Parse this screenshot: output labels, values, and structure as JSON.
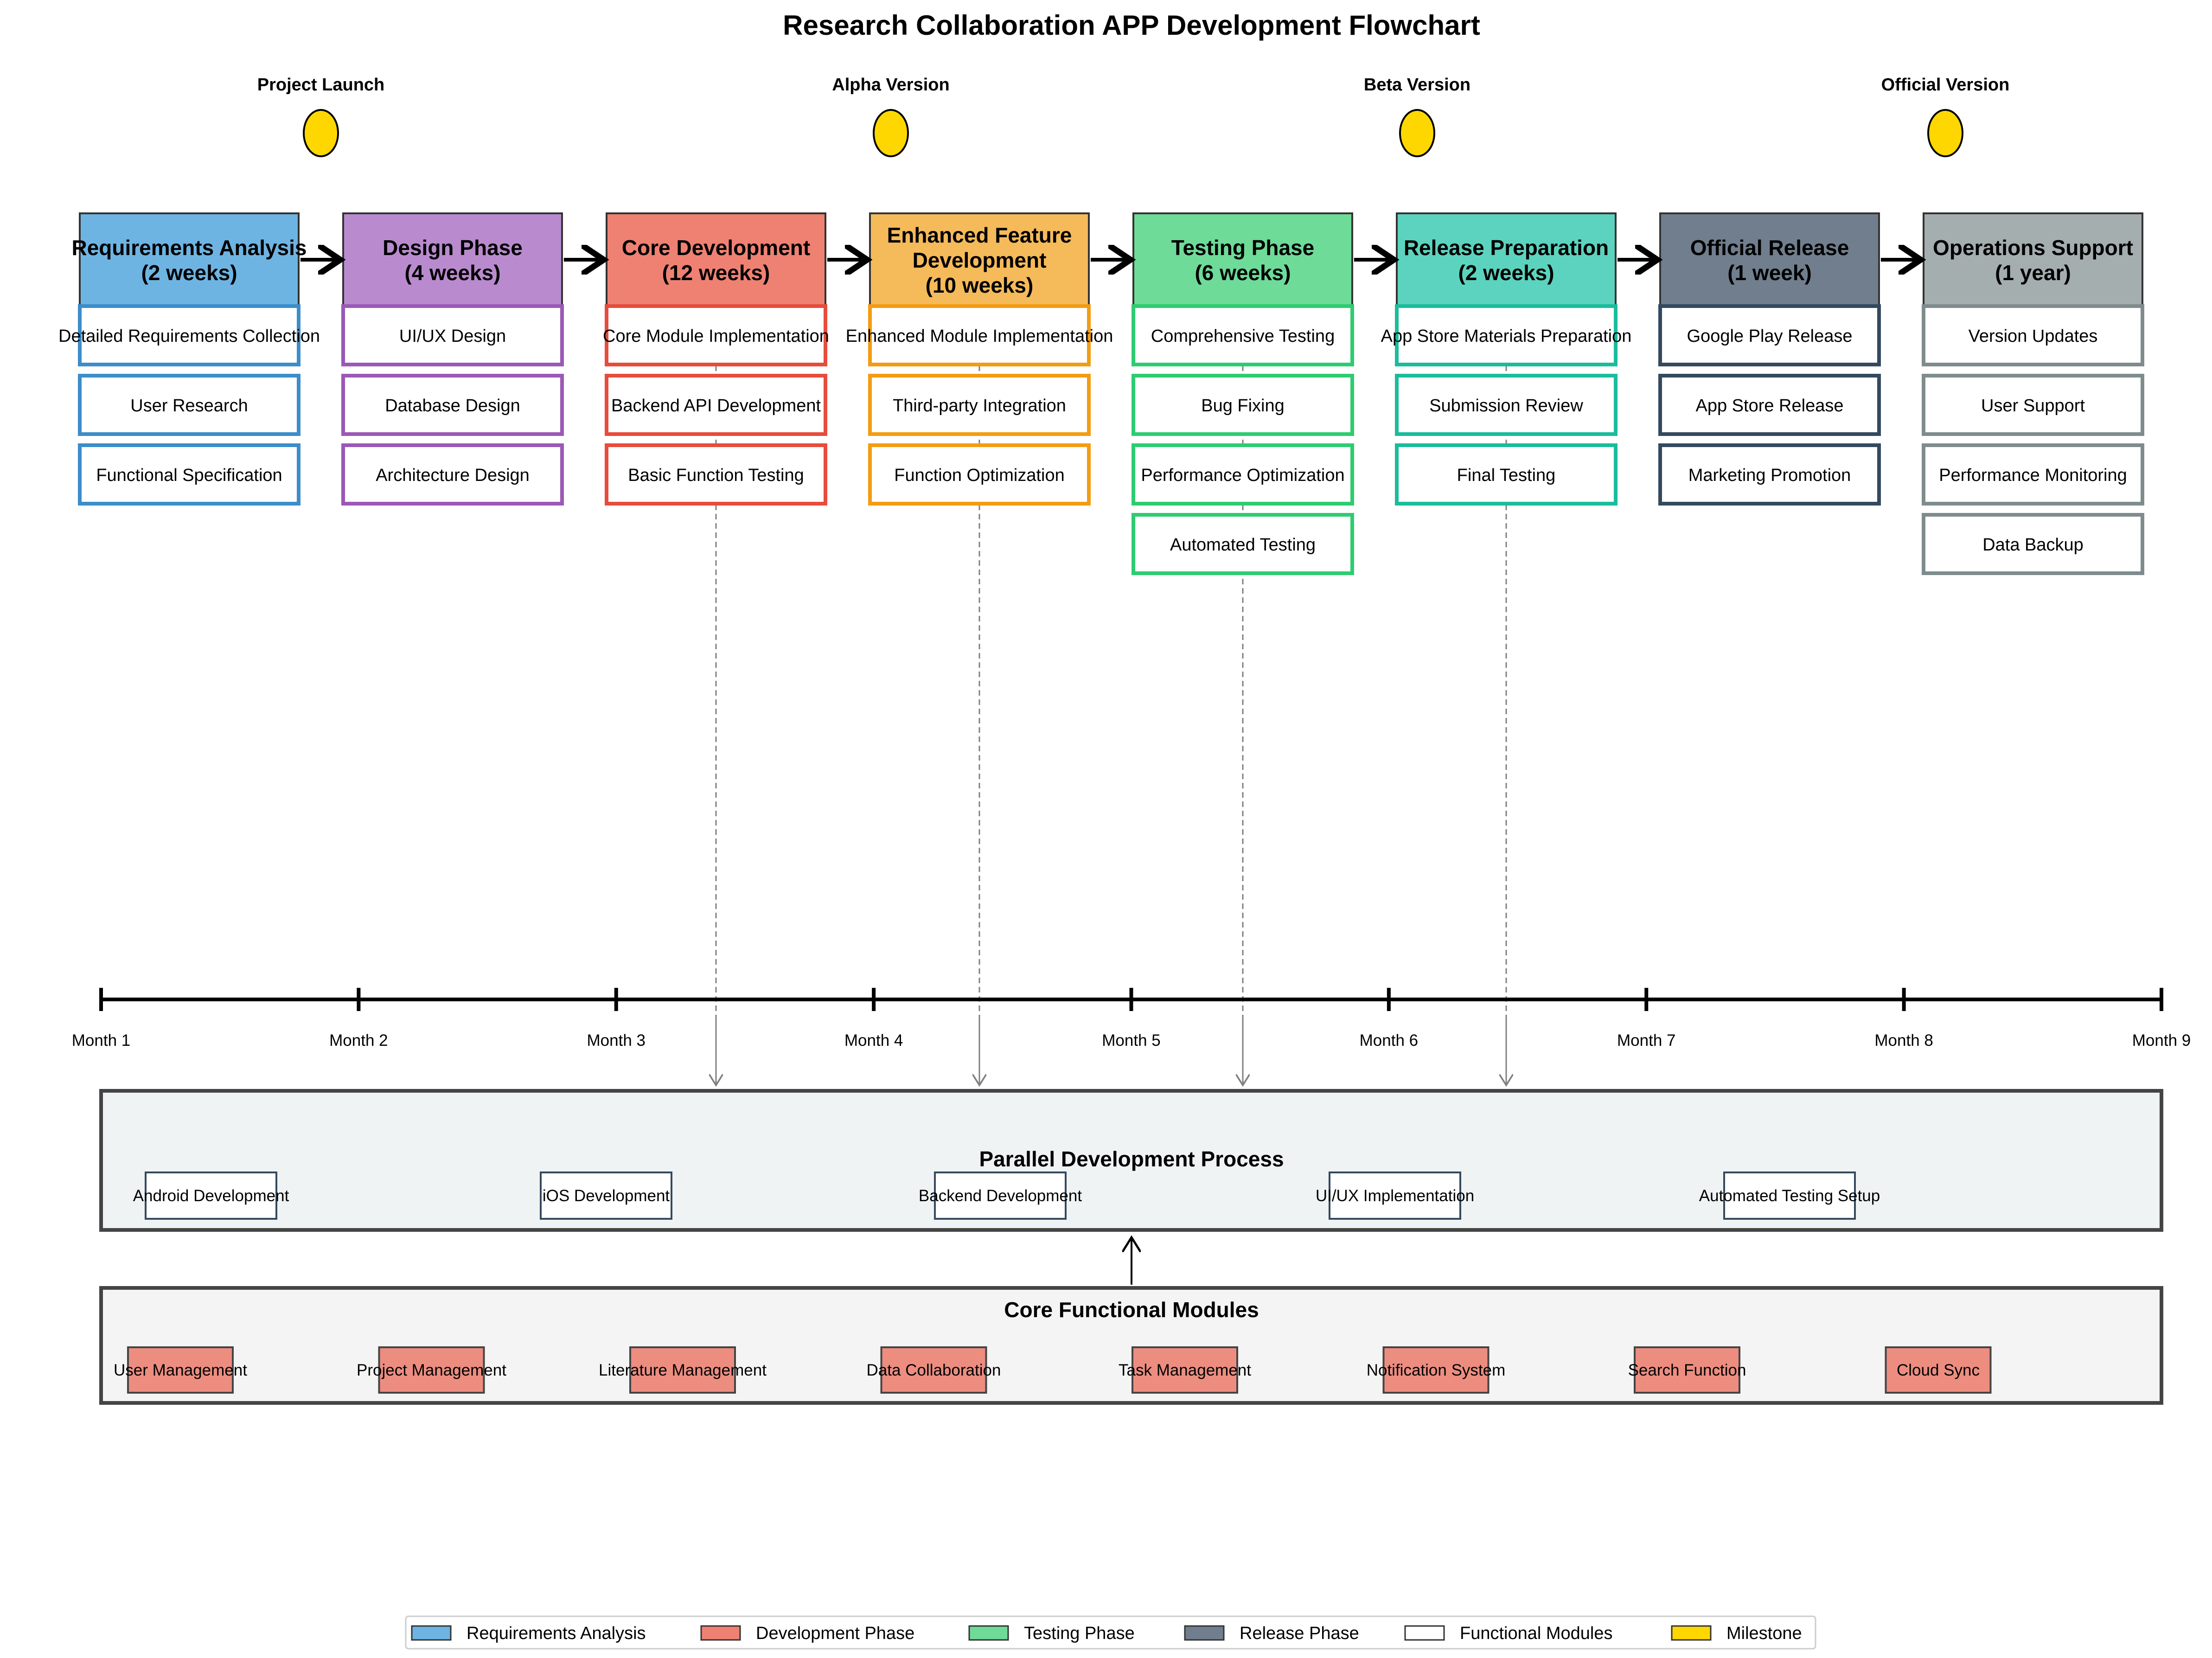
{
  "title": "Research Collaboration APP Development Flowchart",
  "milestones": [
    {
      "label": "Project Launch",
      "color": "#FFD700"
    },
    {
      "label": "Alpha Version",
      "color": "#FFD700"
    },
    {
      "label": "Beta Version",
      "color": "#FFD700"
    },
    {
      "label": "Official Version",
      "color": "#FFD700"
    }
  ],
  "phases": [
    {
      "title": [
        "Requirements Analysis",
        "(2 weeks)"
      ],
      "fill": "#6EB4E3",
      "border": "#3C8DC9",
      "tasks": [
        "Detailed Requirements Collection",
        "User Research",
        "Functional Specification"
      ]
    },
    {
      "title": [
        "Design Phase",
        "(4 weeks)"
      ],
      "fill": "#B98BCE",
      "border": "#9B59B6",
      "tasks": [
        "UI/UX Design",
        "Database Design",
        "Architecture Design"
      ]
    },
    {
      "title": [
        "Core Development",
        "(12 weeks)"
      ],
      "fill": "#EF8173",
      "border": "#E74C3C",
      "tasks": [
        "Core Module Implementation",
        "Backend API Development",
        "Basic Function Testing"
      ]
    },
    {
      "title": [
        "Enhanced Feature",
        "Development",
        "(10 weeks)"
      ],
      "fill": "#F5BA5A",
      "border": "#F39C12",
      "tasks": [
        "Enhanced Module Implementation",
        "Third-party Integration",
        "Function Optimization"
      ]
    },
    {
      "title": [
        "Testing Phase",
        "(6 weeks)"
      ],
      "fill": "#6EDB98",
      "border": "#2ECC71",
      "tasks": [
        "Comprehensive Testing",
        "Bug Fixing",
        "Performance Optimization",
        "Automated Testing"
      ]
    },
    {
      "title": [
        "Release Preparation",
        "(2 weeks)"
      ],
      "fill": "#5CD3BE",
      "border": "#1ABC9C",
      "tasks": [
        "App Store Materials Preparation",
        "Submission Review",
        "Final Testing"
      ]
    },
    {
      "title": [
        "Official Release",
        "(1 week)"
      ],
      "fill": "#707E8E",
      "border": "#34495E",
      "tasks": [
        "Google Play Release",
        "App Store Release",
        "Marketing Promotion"
      ]
    },
    {
      "title": [
        "Operations Support",
        "(1 year)"
      ],
      "fill": "#A5AEAF",
      "border": "#7F8C8D",
      "tasks": [
        "Version Updates",
        "User Support",
        "Performance Monitoring",
        "Data Backup"
      ]
    }
  ],
  "timeline": [
    "Month 1",
    "Month 2",
    "Month 3",
    "Month 4",
    "Month 5",
    "Month 6",
    "Month 7",
    "Month 8",
    "Month 9"
  ],
  "parallel": {
    "title": "Parallel Development Process",
    "items": [
      "Android Development",
      "iOS Development",
      "Backend Development",
      "UI/UX Implementation",
      "Automated Testing Setup"
    ]
  },
  "core": {
    "title": "Core Functional Modules",
    "module_fill": "#EC8D80",
    "items": [
      "User Management",
      "Project Management",
      "Literature Management",
      "Data Collaboration",
      "Task Management",
      "Notification System",
      "Search Function",
      "Cloud Sync"
    ]
  },
  "legend": [
    {
      "label": "Requirements Analysis",
      "color": "#6EB4E3"
    },
    {
      "label": "Development Phase",
      "color": "#EF8173"
    },
    {
      "label": "Testing Phase",
      "color": "#6EDB98"
    },
    {
      "label": "Release Phase",
      "color": "#707E8E"
    },
    {
      "label": "Functional Modules",
      "color": "#FFFFFF"
    },
    {
      "label": "Milestone",
      "color": "#FFD700"
    }
  ]
}
